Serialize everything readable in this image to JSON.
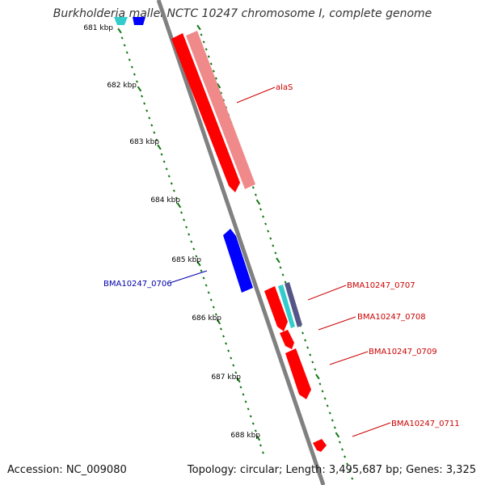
{
  "title": "Burkholderia mallei NCTC 10247 chromosome I, complete genome",
  "accession": "Accession: NC_009080",
  "stats": "Topology: circular; Length: 3,495,687 bp; Genes: 3,325",
  "colors": {
    "backbone": "#808080",
    "tick": "#117711",
    "forward_gene": "#ff0000",
    "forward_gene_light": "#f08a8a",
    "reverse_gene": "#0000ff",
    "cyan_gene": "#33cccc",
    "label_red": "#cc0000",
    "label_blue": "#0000aa"
  },
  "kbp_ticks": [
    "681 kbp",
    "682 kbp",
    "683 kbp",
    "684 kbp",
    "685 kbp",
    "686 kbp",
    "687 kbp",
    "688 kbp"
  ],
  "gene_labels": [
    {
      "text": "alaS",
      "color": "red"
    },
    {
      "text": "BMA10247_0706",
      "color": "blue"
    },
    {
      "text": "BMA10247_0707",
      "color": "red"
    },
    {
      "text": "BMA10247_0708",
      "color": "red"
    },
    {
      "text": "BMA10247_0709",
      "color": "red"
    },
    {
      "text": "BMA10247_0711",
      "color": "red"
    }
  ]
}
